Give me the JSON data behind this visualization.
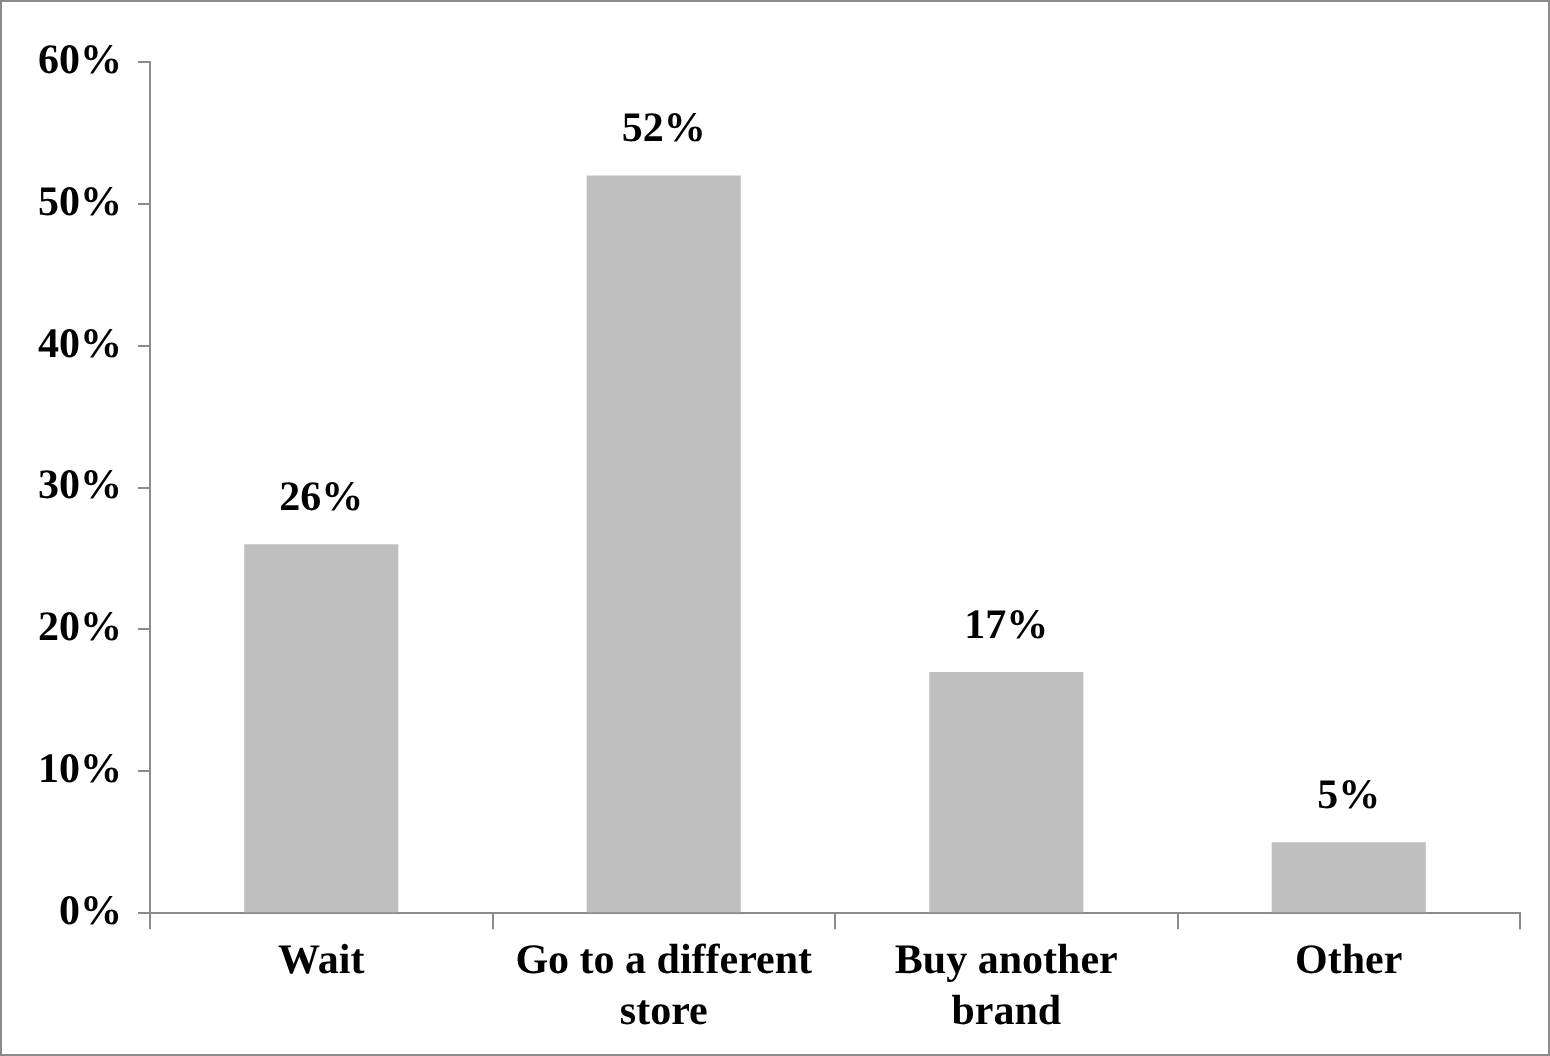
{
  "chart_data": {
    "type": "bar",
    "categories": [
      "Wait",
      "Go to a different store",
      "Buy another brand",
      "Other"
    ],
    "values": [
      26,
      52,
      17,
      5
    ],
    "color": "#bfbfbf",
    "value_labels": [
      "26%",
      "52%",
      "17%",
      "5%"
    ],
    "ylim": [
      0,
      60
    ],
    "yticks": [
      {
        "value": 0,
        "label": "0%"
      },
      {
        "value": 10,
        "label": "10%"
      },
      {
        "value": 20,
        "label": "20%"
      },
      {
        "value": 30,
        "label": "30%"
      },
      {
        "value": 40,
        "label": "40%"
      },
      {
        "value": 50,
        "label": "50%"
      },
      {
        "value": 60,
        "label": "60%"
      }
    ],
    "grid": false,
    "legend": false
  }
}
